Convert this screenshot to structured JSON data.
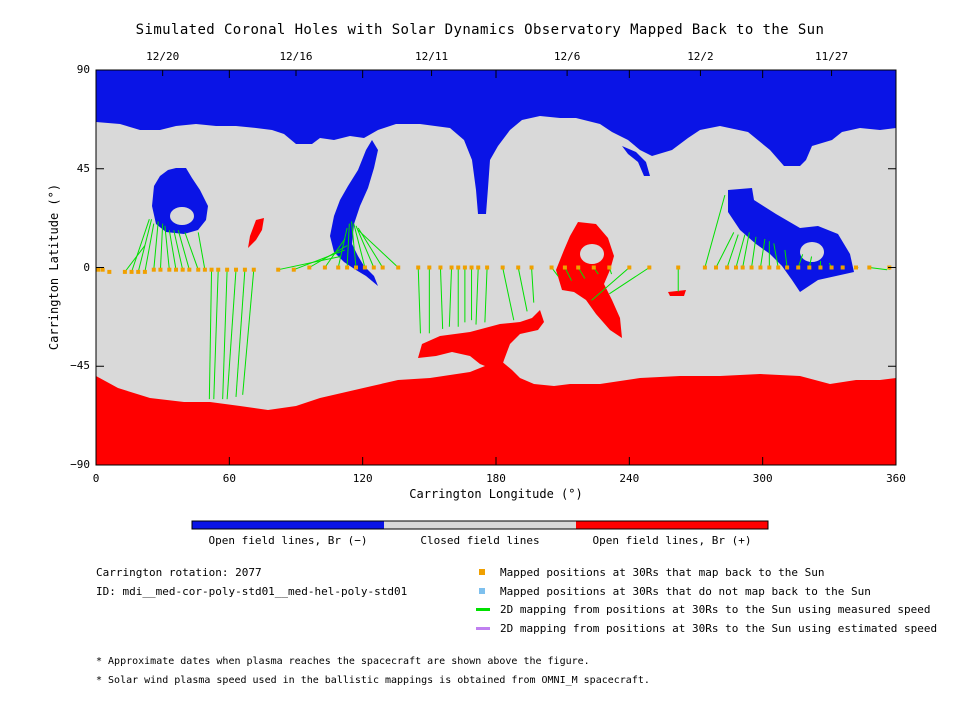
{
  "title": "Simulated Coronal Holes with Solar Dynamics Observatory Mapped Back to the Sun",
  "colors": {
    "open_negative": "#0a14e6",
    "closed": "#d9d9d9",
    "open_positive": "#ff0000",
    "mapped": "#f0a000",
    "not_mapped": "#7ec0ee",
    "measured_line": "#00e000",
    "estimated_line": "#c080f0"
  },
  "chart_data": {
    "type": "heatmap",
    "title": "Simulated Coronal Holes with Solar Dynamics Observatory Mapped Back to the Sun",
    "xlabel": "Carrington Longitude (°)",
    "ylabel": "Carrington Latitude (°)",
    "xlim": [
      0,
      360
    ],
    "ylim": [
      -90,
      90
    ],
    "xticks": [
      0,
      60,
      120,
      180,
      240,
      300,
      360
    ],
    "yticks": [
      -90,
      -45,
      0,
      45,
      90
    ],
    "top_dates": [
      {
        "label": "12/20",
        "lon": 30
      },
      {
        "label": "12/16",
        "lon": 90
      },
      {
        "label": "12/11",
        "lon": 151
      },
      {
        "label": "12/6",
        "lon": 212
      },
      {
        "label": "12/2",
        "lon": 272
      },
      {
        "label": "11/27",
        "lon": 331
      }
    ],
    "color_bar": [
      {
        "label": "Open field lines, Br (−)",
        "color_key": "open_negative"
      },
      {
        "label": "Closed field lines",
        "color_key": "closed"
      },
      {
        "label": "Open field lines, Br (+)",
        "color_key": "open_positive"
      }
    ],
    "mappings": [
      {
        "lon30": 1,
        "lat30": -1,
        "lonS": 1,
        "latS": -1
      },
      {
        "lon30": 3,
        "lat30": -1,
        "lonS": 3,
        "latS": -1
      },
      {
        "lon30": 6,
        "lat30": -2,
        "lonS": 6,
        "latS": -2
      },
      {
        "lon30": 13,
        "lat30": -2,
        "lonS": 22,
        "latS": 10
      },
      {
        "lon30": 16,
        "lat30": -2,
        "lonS": 24,
        "latS": 22
      },
      {
        "lon30": 19,
        "lat30": -2,
        "lonS": 25,
        "latS": 22
      },
      {
        "lon30": 22,
        "lat30": -2,
        "lonS": 26,
        "latS": 20
      },
      {
        "lon30": 26,
        "lat30": -1,
        "lonS": 28,
        "latS": 21
      },
      {
        "lon30": 29,
        "lat30": -1,
        "lonS": 30,
        "latS": 20
      },
      {
        "lon30": 33,
        "lat30": -1,
        "lonS": 31,
        "latS": 19
      },
      {
        "lon30": 36,
        "lat30": -1,
        "lonS": 33,
        "latS": 17
      },
      {
        "lon30": 39,
        "lat30": -1,
        "lonS": 35,
        "latS": 17
      },
      {
        "lon30": 42,
        "lat30": -1,
        "lonS": 37,
        "latS": 17
      },
      {
        "lon30": 46,
        "lat30": -1,
        "lonS": 40,
        "latS": 16
      },
      {
        "lon30": 49,
        "lat30": -1,
        "lonS": 46,
        "latS": 16
      },
      {
        "lon30": 52,
        "lat30": -1,
        "lonS": 51,
        "latS": -60
      },
      {
        "lon30": 55,
        "lat30": -1,
        "lonS": 53,
        "latS": -60
      },
      {
        "lon30": 59,
        "lat30": -1,
        "lonS": 57,
        "latS": -60
      },
      {
        "lon30": 63,
        "lat30": -1,
        "lonS": 59,
        "latS": -60
      },
      {
        "lon30": 67,
        "lat30": -1,
        "lonS": 63,
        "latS": -59
      },
      {
        "lon30": 71,
        "lat30": -1,
        "lonS": 66,
        "latS": -58
      },
      {
        "lon30": 82,
        "lat30": -1,
        "lonS": 110,
        "latS": 5
      },
      {
        "lon30": 89,
        "lat30": -1,
        "lonS": 112,
        "latS": 8
      },
      {
        "lon30": 96,
        "lat30": 0,
        "lonS": 113,
        "latS": 10
      },
      {
        "lon30": 103,
        "lat30": 0,
        "lonS": 112,
        "latS": 13
      },
      {
        "lon30": 109,
        "lat30": 0,
        "lonS": 113,
        "latS": 18
      },
      {
        "lon30": 113,
        "lat30": 0,
        "lonS": 114,
        "latS": 20
      },
      {
        "lon30": 117,
        "lat30": 0,
        "lonS": 115,
        "latS": 21
      },
      {
        "lon30": 121,
        "lat30": 0,
        "lonS": 116,
        "latS": 20
      },
      {
        "lon30": 125,
        "lat30": 0,
        "lonS": 117,
        "latS": 19
      },
      {
        "lon30": 129,
        "lat30": 0,
        "lonS": 118,
        "latS": 18
      },
      {
        "lon30": 136,
        "lat30": 0,
        "lonS": 118,
        "latS": 17
      },
      {
        "lon30": 145,
        "lat30": 0,
        "lonS": 146,
        "latS": -30
      },
      {
        "lon30": 150,
        "lat30": 0,
        "lonS": 150,
        "latS": -30
      },
      {
        "lon30": 155,
        "lat30": 0,
        "lonS": 156,
        "latS": -28
      },
      {
        "lon30": 160,
        "lat30": 0,
        "lonS": 159,
        "latS": -27
      },
      {
        "lon30": 163,
        "lat30": 0,
        "lonS": 163,
        "latS": -27
      },
      {
        "lon30": 166,
        "lat30": 0,
        "lonS": 166,
        "latS": -25
      },
      {
        "lon30": 169,
        "lat30": 0,
        "lonS": 169,
        "latS": -24
      },
      {
        "lon30": 172,
        "lat30": 0,
        "lonS": 171,
        "latS": -26
      },
      {
        "lon30": 176,
        "lat30": 0,
        "lonS": 175,
        "latS": -25
      },
      {
        "lon30": 183,
        "lat30": 0,
        "lonS": 188,
        "latS": -24
      },
      {
        "lon30": 190,
        "lat30": 0,
        "lonS": 194,
        "latS": -20
      },
      {
        "lon30": 196,
        "lat30": 0,
        "lonS": 197,
        "latS": -16
      },
      {
        "lon30": 205,
        "lat30": 0,
        "lonS": 208,
        "latS": -4
      },
      {
        "lon30": 211,
        "lat30": 0,
        "lonS": 214,
        "latS": -6
      },
      {
        "lon30": 217,
        "lat30": 0,
        "lonS": 220,
        "latS": -5
      },
      {
        "lon30": 224,
        "lat30": 0,
        "lonS": 226,
        "latS": -3
      },
      {
        "lon30": 231,
        "lat30": 0,
        "lonS": 232,
        "latS": -3
      },
      {
        "lon30": 240,
        "lat30": 0,
        "lonS": 223,
        "latS": -15
      },
      {
        "lon30": 249,
        "lat30": 0,
        "lonS": 231,
        "latS": -12
      },
      {
        "lon30": 262,
        "lat30": 0,
        "lonS": 262,
        "latS": -11
      },
      {
        "lon30": 274,
        "lat30": 0,
        "lonS": 283,
        "latS": 33
      },
      {
        "lon30": 279,
        "lat30": 0,
        "lonS": 287,
        "latS": 16
      },
      {
        "lon30": 284,
        "lat30": 0,
        "lonS": 289,
        "latS": 15
      },
      {
        "lon30": 288,
        "lat30": 0,
        "lonS": 292,
        "latS": 15
      },
      {
        "lon30": 291,
        "lat30": 0,
        "lonS": 294,
        "latS": 16
      },
      {
        "lon30": 295,
        "lat30": 0,
        "lonS": 297,
        "latS": 14
      },
      {
        "lon30": 299,
        "lat30": 0,
        "lonS": 301,
        "latS": 13
      },
      {
        "lon30": 303,
        "lat30": 0,
        "lonS": 303,
        "latS": 12
      },
      {
        "lon30": 307,
        "lat30": 0,
        "lonS": 305,
        "latS": 11
      },
      {
        "lon30": 311,
        "lat30": 0,
        "lonS": 310,
        "latS": 8
      },
      {
        "lon30": 316,
        "lat30": 0,
        "lonS": 318,
        "latS": 6
      },
      {
        "lon30": 321,
        "lat30": 0,
        "lonS": 322,
        "latS": 5
      },
      {
        "lon30": 326,
        "lat30": 0,
        "lonS": 326,
        "latS": 3
      },
      {
        "lon30": 331,
        "lat30": 0,
        "lonS": 330,
        "latS": 2
      },
      {
        "lon30": 336,
        "lat30": 0,
        "lonS": 336,
        "latS": 1
      },
      {
        "lon30": 342,
        "lat30": 0,
        "lonS": 343,
        "latS": 0
      },
      {
        "lon30": 348,
        "lat30": 0,
        "lonS": 356,
        "latS": -1
      },
      {
        "lon30": 357,
        "lat30": 0,
        "lonS": 357,
        "latS": -1
      }
    ]
  },
  "info": {
    "rotation": "Carrington rotation: 2077",
    "id": "ID: mdi__med-cor-poly-std01__med-hel-poly-std01"
  },
  "legend": [
    {
      "label": "Mapped positions at 30Rs that map back to the Sun",
      "kind": "square",
      "color_key": "mapped"
    },
    {
      "label": "Mapped positions at 30Rs that do not map back to the Sun",
      "kind": "square",
      "color_key": "not_mapped"
    },
    {
      "label": "2D mapping from positions at 30Rs to the Sun using measured speed",
      "kind": "line",
      "color_key": "measured_line"
    },
    {
      "label": "2D mapping from positions at 30Rs to the Sun using estimated speed",
      "kind": "line",
      "color_key": "estimated_line"
    }
  ],
  "footnotes": [
    "* Approximate dates when plasma reaches the spacecraft are shown above the figure.",
    "* Solar wind plasma speed used in the ballistic mappings is obtained from OMNI_M spacecraft."
  ]
}
